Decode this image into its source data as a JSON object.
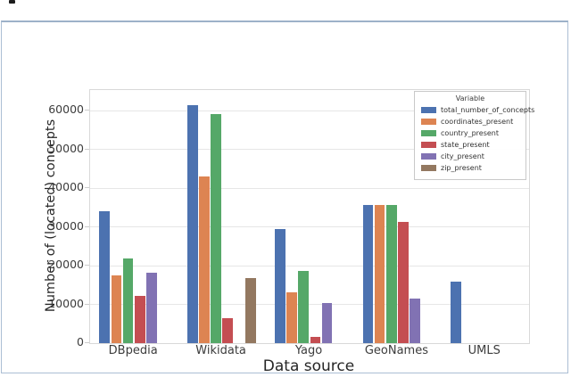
{
  "figure": {
    "panel_border_color": "#abbed4",
    "background_color": "#ffffff"
  },
  "chart_data": {
    "type": "bar",
    "title": "",
    "xlabel": "Data source",
    "ylabel": "Number of (located) concepts",
    "categories": [
      "DBpedia",
      "Wikidata",
      "Yago",
      "GeoNames",
      "UMLS"
    ],
    "series": [
      {
        "name": "total_number_of_concepts",
        "color": "#4C72B0",
        "values": [
          34000,
          61300,
          29400,
          35600,
          15900
        ]
      },
      {
        "name": "coordinates_present",
        "color": "#DD8452",
        "values": [
          17500,
          43000,
          13200,
          35600,
          0
        ]
      },
      {
        "name": "country_present",
        "color": "#55A868",
        "values": [
          21800,
          59000,
          18600,
          35600,
          0
        ]
      },
      {
        "name": "state_present",
        "color": "#C44E52",
        "values": [
          12200,
          6500,
          1500,
          31300,
          0
        ]
      },
      {
        "name": "city_present",
        "color": "#8172B3",
        "values": [
          18200,
          0,
          10300,
          11400,
          0
        ]
      },
      {
        "name": "zip_present",
        "color": "#937860",
        "values": [
          0,
          16900,
          0,
          0,
          0
        ]
      }
    ],
    "legend_title": "Variable",
    "legend_position": "upper right",
    "yticks": [
      0,
      10000,
      20000,
      30000,
      40000,
      50000,
      60000
    ],
    "ylim": [
      0,
      65300
    ],
    "grid": "horizontal"
  }
}
